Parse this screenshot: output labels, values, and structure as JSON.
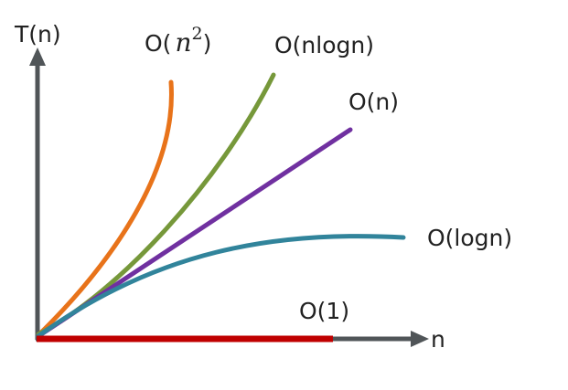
{
  "axes": {
    "y_label": "T(n)",
    "x_label": "n",
    "color": "#505558"
  },
  "curves": [
    {
      "id": "quadratic",
      "label_prefix": "O(",
      "label_math": "n",
      "label_exponent": "2",
      "label_suffix": ")",
      "color": "#e8731a"
    },
    {
      "id": "nlogn",
      "label": "O(nlogn)",
      "color": "#76983a"
    },
    {
      "id": "linear",
      "label": "O(n)",
      "color": "#7030a0"
    },
    {
      "id": "logn",
      "label": "O(logn)",
      "color": "#31849b"
    },
    {
      "id": "constant",
      "label": "O(1)",
      "color": "#c00000"
    }
  ]
}
